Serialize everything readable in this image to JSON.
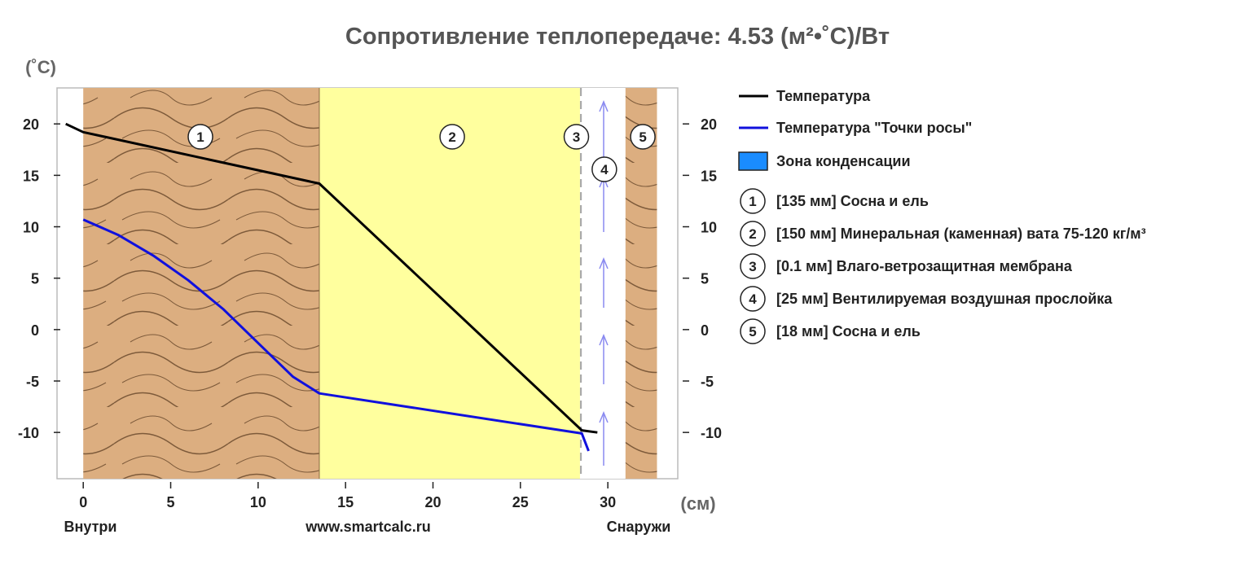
{
  "chart_data": {
    "type": "line",
    "title": "Сопротивление теплопередаче: 4.53 (м²•˚C)/Вт",
    "ylabel": "(˚C)",
    "xlabel": "(см)",
    "xlim": [
      -1.5,
      34
    ],
    "ylim": [
      -14.5,
      23.5
    ],
    "x_ticks": [
      0,
      5,
      10,
      15,
      20,
      25,
      30
    ],
    "y_ticks": [
      20,
      15,
      10,
      5,
      0,
      -5,
      -10
    ],
    "x_tick_labels": [
      "0",
      "5",
      "10",
      "15",
      "20",
      "25",
      "30"
    ],
    "y_tick_labels": [
      "20",
      "15",
      "10",
      "5",
      "0",
      "-5",
      "-10"
    ],
    "bottom_labels": {
      "left": "Внутри",
      "center": "www.smartcalc.ru",
      "right": "Снаружи"
    },
    "layers": [
      {
        "id": "1",
        "marker": "1",
        "from": 0,
        "to": 13.5,
        "fill": "wood",
        "label": "[135 мм] Сосна и ель"
      },
      {
        "id": "2",
        "marker": "2",
        "from": 13.5,
        "to": 28.5,
        "fill": "insulation",
        "label": "[150 мм] Минеральная (каменная) вата 75-120 кг/м³"
      },
      {
        "id": "3",
        "marker": "3",
        "from": 28.5,
        "to": 28.51,
        "fill": "membrane",
        "label": "[0.1 мм] Влаго-ветрозащитная мембрана"
      },
      {
        "id": "4",
        "marker": "4",
        "from": 28.51,
        "to": 31.01,
        "fill": "air",
        "label": "[25 мм] Вентилируемая воздушная прослойка"
      },
      {
        "id": "5",
        "marker": "5",
        "from": 31.01,
        "to": 32.81,
        "fill": "wood",
        "label": "[18 мм] Сосна и ель"
      }
    ],
    "series": [
      {
        "name": "Температура",
        "color": "#000000",
        "x": [
          -1,
          0,
          13.5,
          28.51,
          29.4
        ],
        "y": [
          20,
          19.2,
          14.2,
          -9.8,
          -10
        ]
      },
      {
        "name": "Температура \"Точки росы\"",
        "color": "#1010dd",
        "x": [
          0,
          2,
          4,
          6,
          8,
          10,
          12,
          13.5,
          28.51,
          28.9
        ],
        "y": [
          10.7,
          9.2,
          7.2,
          4.8,
          2.0,
          -1.3,
          -4.6,
          -6.2,
          -10.1,
          -11.8
        ]
      }
    ],
    "legend": {
      "placement": "right",
      "condensation_label": "Зона конденсации",
      "condensation_color": "#1a8cff"
    },
    "colors": {
      "wood": "#dcae80",
      "wood_grain": "#7d5a3a",
      "insulation": "#ffff9e",
      "membrane": "#aaaaaa",
      "air": "#ffffff",
      "frame": "#bbbbbb",
      "air_arrow": "#8a8af0"
    }
  }
}
